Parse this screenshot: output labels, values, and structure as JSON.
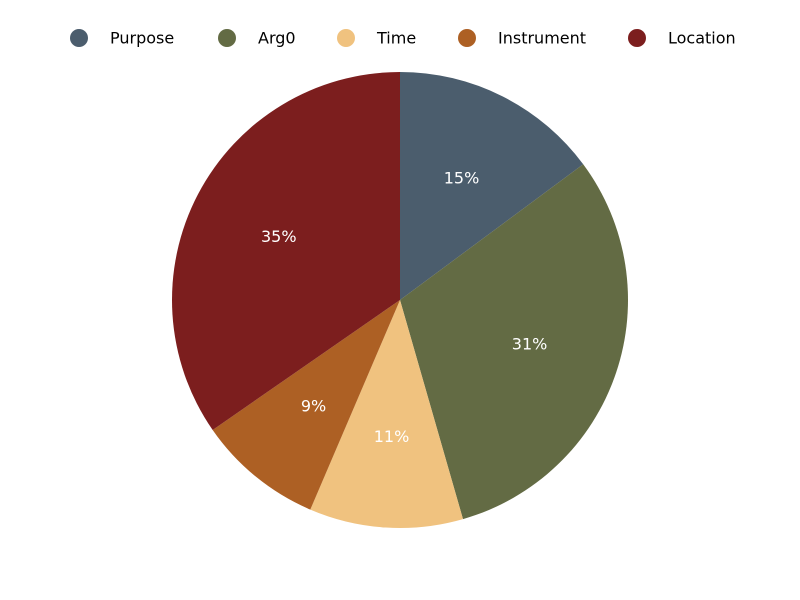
{
  "chart_data": {
    "type": "pie",
    "title": "",
    "categories": [
      "Purpose",
      "Arg0",
      "Time",
      "Instrument",
      "Location"
    ],
    "values": [
      15,
      31,
      11,
      9,
      35
    ],
    "value_labels": [
      "15%",
      "31%",
      "11%",
      "9%",
      "35%"
    ],
    "colors": [
      "#4b5d6d",
      "#636b44",
      "#f0c27f",
      "#ad6024",
      "#7c1e1e"
    ],
    "start_angle_deg": 90,
    "direction": "clockwise",
    "legend": {
      "placement": "top",
      "entries": [
        "Purpose",
        "Arg0",
        "Time",
        "Instrument",
        "Location"
      ]
    }
  }
}
